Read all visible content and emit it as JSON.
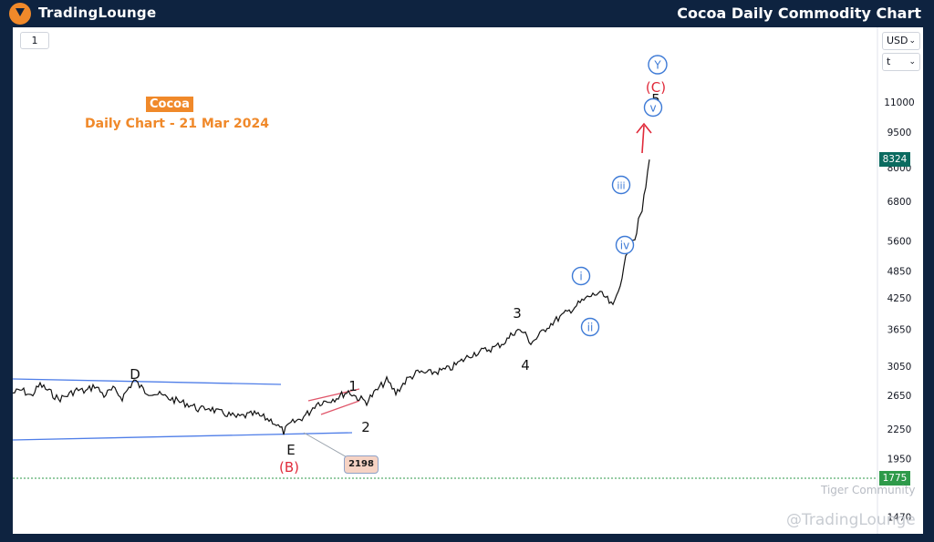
{
  "header": {
    "logo_text": "TradingLounge",
    "title": "Cocoa Daily Commodity Chart"
  },
  "toolbar": {
    "interval_label": "1",
    "currency_label": "USD",
    "unit_label": "t"
  },
  "plot": {
    "title": "Cocoa",
    "subtitle": "Daily Chart - 21 Mar 2024"
  },
  "watermarks": {
    "community": "Tiger Community",
    "brand": "@TradingLounge"
  },
  "colors": {
    "frame": "#0e2340",
    "accent": "#f0892a",
    "wave_blue": "#3d7ad6",
    "wave_red": "#e02a3a",
    "price_line": "#111111",
    "last_price_badge": "#0b6b60",
    "support_badge": "#2e9a4a"
  },
  "chart_data": {
    "type": "line",
    "series": [
      {
        "values": [
          [
            0,
            2680
          ],
          [
            10,
            2720
          ],
          [
            20,
            2640
          ],
          [
            30,
            2790
          ],
          [
            40,
            2700
          ],
          [
            50,
            2600
          ],
          [
            60,
            2650
          ],
          [
            70,
            2720
          ],
          [
            80,
            2700
          ],
          [
            90,
            2780
          ],
          [
            100,
            2650
          ],
          [
            110,
            2730
          ],
          [
            120,
            2620
          ],
          [
            133,
            2850
          ],
          [
            145,
            2700
          ],
          [
            155,
            2680
          ],
          [
            165,
            2640
          ],
          [
            175,
            2600
          ],
          [
            185,
            2560
          ],
          [
            195,
            2530
          ],
          [
            205,
            2470
          ],
          [
            215,
            2500
          ],
          [
            225,
            2440
          ],
          [
            235,
            2420
          ],
          [
            245,
            2380
          ],
          [
            255,
            2400
          ],
          [
            265,
            2420
          ],
          [
            275,
            2380
          ],
          [
            285,
            2340
          ],
          [
            297,
            2220
          ],
          [
            305,
            2310
          ],
          [
            315,
            2360
          ],
          [
            325,
            2440
          ],
          [
            333,
            2550
          ],
          [
            345,
            2580
          ],
          [
            355,
            2620
          ],
          [
            368,
            2700
          ],
          [
            378,
            2620
          ],
          [
            388,
            2570
          ],
          [
            398,
            2700
          ],
          [
            410,
            2850
          ],
          [
            420,
            2680
          ],
          [
            432,
            2860
          ],
          [
            444,
            2960
          ],
          [
            456,
            2950
          ],
          [
            468,
            2980
          ],
          [
            480,
            3020
          ],
          [
            492,
            3130
          ],
          [
            504,
            3240
          ],
          [
            516,
            3290
          ],
          [
            528,
            3340
          ],
          [
            540,
            3440
          ],
          [
            552,
            3640
          ],
          [
            560,
            3600
          ],
          [
            568,
            3420
          ],
          [
            576,
            3520
          ],
          [
            586,
            3700
          ],
          [
            598,
            3850
          ],
          [
            610,
            3990
          ],
          [
            622,
            4150
          ],
          [
            632,
            4280
          ],
          [
            642,
            4350
          ],
          [
            650,
            4260
          ],
          [
            658,
            4060
          ],
          [
            664,
            4420
          ],
          [
            670,
            4900
          ],
          [
            674,
            5350
          ],
          [
            678,
            5700
          ],
          [
            682,
            5650
          ],
          [
            686,
            6150
          ],
          [
            690,
            6500
          ],
          [
            694,
            7300
          ],
          [
            698,
            8324
          ]
        ]
      }
    ],
    "y_axis": {
      "scale": "log",
      "ticks": [
        "11000",
        "9500",
        "8000",
        "6800",
        "5600",
        "4850",
        "4250",
        "3650",
        "3050",
        "2650",
        "2250",
        "1950",
        "1775",
        "1470"
      ]
    },
    "last_price": "8324",
    "support_price": "1775",
    "low_label": "2198",
    "wave_labels": [
      {
        "text": "D",
        "style": "black"
      },
      {
        "text": "E",
        "style": "black"
      },
      {
        "text": "(B)",
        "style": "red"
      },
      {
        "text": "1",
        "style": "black"
      },
      {
        "text": "2",
        "style": "black"
      },
      {
        "text": "3",
        "style": "black"
      },
      {
        "text": "4",
        "style": "black"
      },
      {
        "text": "5",
        "style": "black"
      },
      {
        "text": "(C)",
        "style": "red"
      },
      {
        "text": "Y",
        "style": "blue-circle"
      },
      {
        "text": "i",
        "style": "blue-circle"
      },
      {
        "text": "ii",
        "style": "blue-circle"
      },
      {
        "text": "iii",
        "style": "blue-circle"
      },
      {
        "text": "iv",
        "style": "blue-circle"
      },
      {
        "text": "v",
        "style": "blue-circle"
      }
    ]
  }
}
